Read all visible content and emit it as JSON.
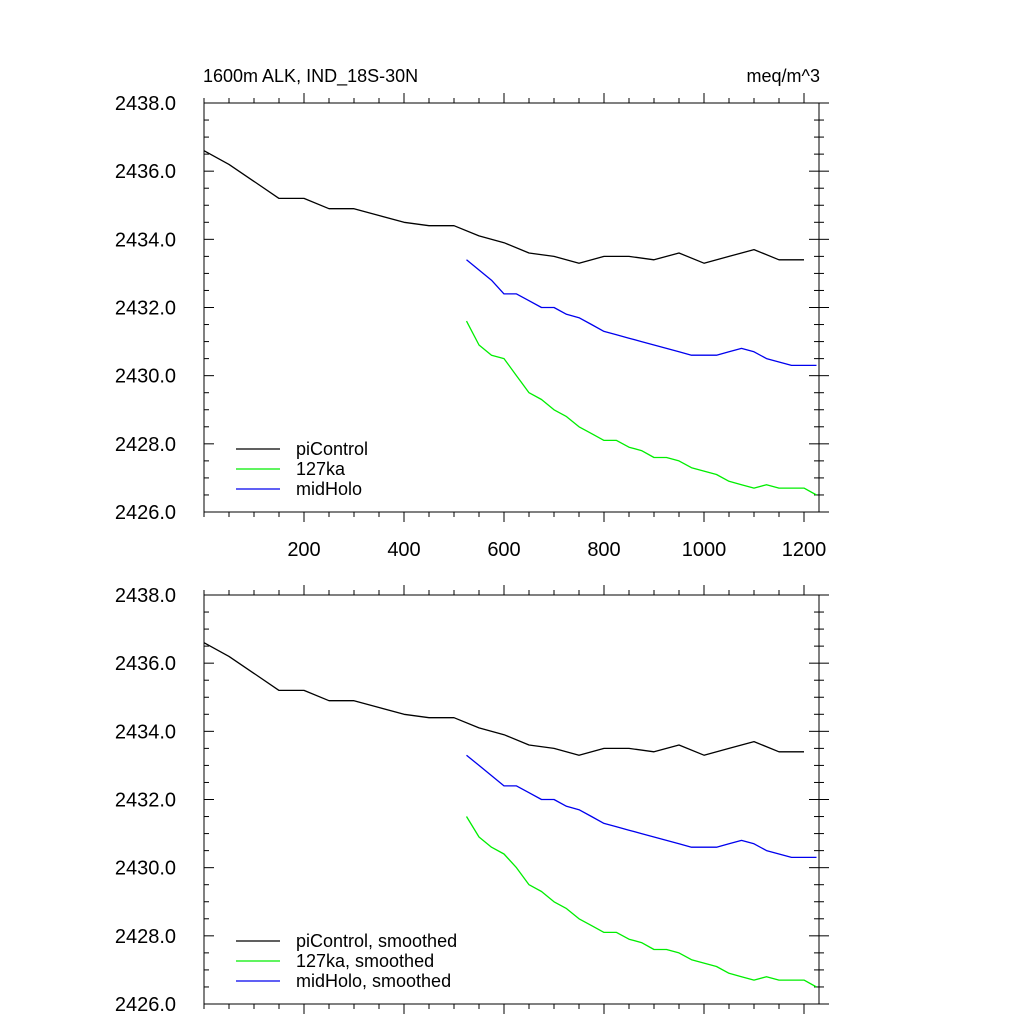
{
  "chart_data": [
    {
      "type": "line",
      "title_left": "1600m ALK, IND_18S-30N",
      "title_right": "meq/m^3",
      "xlim": [
        0,
        1230
      ],
      "ylim": [
        2426.0,
        2438.0
      ],
      "x_ticks": [
        200,
        400,
        600,
        800,
        1000,
        1200
      ],
      "x_tick_labels": [
        "200",
        "400",
        "600",
        "800",
        "1000",
        "1200"
      ],
      "y_ticks": [
        2426.0,
        2428.0,
        2430.0,
        2432.0,
        2434.0,
        2436.0,
        2438.0
      ],
      "y_tick_labels": [
        "2426.0",
        "2428.0",
        "2430.0",
        "2432.0",
        "2434.0",
        "2436.0",
        "2438.0"
      ],
      "legend_position": "bottom-left",
      "series": [
        {
          "name": "piControl",
          "color": "#000000",
          "x": [
            0,
            50,
            100,
            150,
            200,
            250,
            300,
            350,
            400,
            450,
            500,
            550,
            600,
            650,
            700,
            750,
            800,
            850,
            900,
            950,
            1000,
            1050,
            1100,
            1150,
            1200
          ],
          "y": [
            2436.6,
            2436.2,
            2435.7,
            2435.2,
            2435.2,
            2434.9,
            2434.9,
            2434.7,
            2434.5,
            2434.4,
            2434.4,
            2434.1,
            2433.9,
            2433.6,
            2433.5,
            2433.3,
            2433.5,
            2433.5,
            2433.4,
            2433.6,
            2433.3,
            2433.5,
            2433.7,
            2433.4,
            2433.4
          ]
        },
        {
          "name": "127ka",
          "color": "#00ee00",
          "x": [
            525,
            550,
            575,
            600,
            625,
            650,
            675,
            700,
            725,
            750,
            775,
            800,
            825,
            850,
            875,
            900,
            925,
            950,
            975,
            1000,
            1025,
            1050,
            1075,
            1100,
            1125,
            1150,
            1175,
            1200,
            1225
          ],
          "y": [
            2431.6,
            2430.9,
            2430.6,
            2430.5,
            2430.0,
            2429.5,
            2429.3,
            2429.0,
            2428.8,
            2428.5,
            2428.3,
            2428.1,
            2428.1,
            2427.9,
            2427.8,
            2427.6,
            2427.6,
            2427.5,
            2427.3,
            2427.2,
            2427.1,
            2426.9,
            2426.8,
            2426.7,
            2426.8,
            2426.7,
            2426.7,
            2426.7,
            2426.5
          ]
        },
        {
          "name": "midHolo",
          "color": "#0000ee",
          "x": [
            525,
            550,
            575,
            600,
            625,
            650,
            675,
            700,
            725,
            750,
            775,
            800,
            825,
            850,
            875,
            900,
            925,
            950,
            975,
            1000,
            1025,
            1050,
            1075,
            1100,
            1125,
            1150,
            1175,
            1200,
            1225
          ],
          "y": [
            2433.4,
            2433.1,
            2432.8,
            2432.4,
            2432.4,
            2432.2,
            2432.0,
            2432.0,
            2431.8,
            2431.7,
            2431.5,
            2431.3,
            2431.2,
            2431.1,
            2431.0,
            2430.9,
            2430.8,
            2430.7,
            2430.6,
            2430.6,
            2430.6,
            2430.7,
            2430.8,
            2430.7,
            2430.5,
            2430.4,
            2430.3,
            2430.3,
            2430.3
          ]
        }
      ]
    },
    {
      "type": "line",
      "xlim": [
        0,
        1230
      ],
      "ylim": [
        2426.0,
        2438.0
      ],
      "x_ticks": [
        200,
        400,
        600,
        800,
        1000,
        1200
      ],
      "y_ticks": [
        2426.0,
        2428.0,
        2430.0,
        2432.0,
        2434.0,
        2436.0,
        2438.0
      ],
      "y_tick_labels": [
        "2426.0",
        "2428.0",
        "2430.0",
        "2432.0",
        "2434.0",
        "2436.0",
        "2438.0"
      ],
      "legend_position": "bottom-left",
      "series": [
        {
          "name": "piControl, smoothed",
          "color": "#000000",
          "x": [
            0,
            50,
            100,
            150,
            200,
            250,
            300,
            350,
            400,
            450,
            500,
            550,
            600,
            650,
            700,
            750,
            800,
            850,
            900,
            950,
            1000,
            1050,
            1100,
            1150,
            1200
          ],
          "y": [
            2436.6,
            2436.2,
            2435.7,
            2435.2,
            2435.2,
            2434.9,
            2434.9,
            2434.7,
            2434.5,
            2434.4,
            2434.4,
            2434.1,
            2433.9,
            2433.6,
            2433.5,
            2433.3,
            2433.5,
            2433.5,
            2433.4,
            2433.6,
            2433.3,
            2433.5,
            2433.7,
            2433.4,
            2433.4
          ]
        },
        {
          "name": "127ka, smoothed",
          "color": "#00ee00",
          "x": [
            525,
            550,
            575,
            600,
            625,
            650,
            675,
            700,
            725,
            750,
            775,
            800,
            825,
            850,
            875,
            900,
            925,
            950,
            975,
            1000,
            1025,
            1050,
            1075,
            1100,
            1125,
            1150,
            1175,
            1200,
            1225
          ],
          "y": [
            2431.5,
            2430.9,
            2430.6,
            2430.4,
            2430.0,
            2429.5,
            2429.3,
            2429.0,
            2428.8,
            2428.5,
            2428.3,
            2428.1,
            2428.1,
            2427.9,
            2427.8,
            2427.6,
            2427.6,
            2427.5,
            2427.3,
            2427.2,
            2427.1,
            2426.9,
            2426.8,
            2426.7,
            2426.8,
            2426.7,
            2426.7,
            2426.7,
            2426.5
          ]
        },
        {
          "name": "midHolo, smoothed",
          "color": "#0000ee",
          "x": [
            525,
            550,
            575,
            600,
            625,
            650,
            675,
            700,
            725,
            750,
            775,
            800,
            825,
            850,
            875,
            900,
            925,
            950,
            975,
            1000,
            1025,
            1050,
            1075,
            1100,
            1125,
            1150,
            1175,
            1200,
            1225
          ],
          "y": [
            2433.3,
            2433.0,
            2432.7,
            2432.4,
            2432.4,
            2432.2,
            2432.0,
            2432.0,
            2431.8,
            2431.7,
            2431.5,
            2431.3,
            2431.2,
            2431.1,
            2431.0,
            2430.9,
            2430.8,
            2430.7,
            2430.6,
            2430.6,
            2430.6,
            2430.7,
            2430.8,
            2430.7,
            2430.5,
            2430.4,
            2430.3,
            2430.3,
            2430.3
          ]
        }
      ]
    }
  ]
}
